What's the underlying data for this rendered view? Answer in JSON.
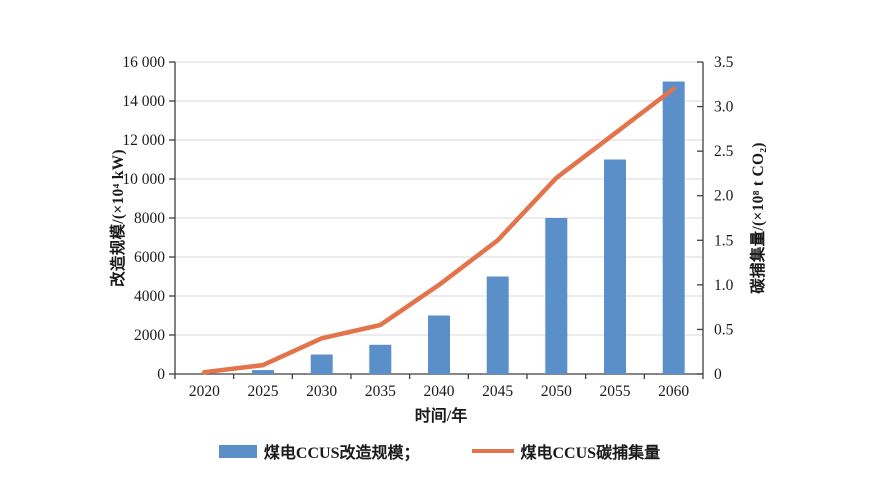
{
  "figure": {
    "background": "#ffffff"
  },
  "chart_data": {
    "type": "bar",
    "subtype": "bar+line dual axis",
    "categories": [
      "2020",
      "2025",
      "2030",
      "2035",
      "2040",
      "2045",
      "2050",
      "2055",
      "2060"
    ],
    "series": [
      {
        "name": "煤电CCUS改造规模",
        "type": "bar",
        "axis": "left",
        "color": "#5B8FC9",
        "values": [
          0,
          200,
          1000,
          1500,
          3000,
          5000,
          8000,
          11000,
          15000
        ]
      },
      {
        "name": "煤电CCUS碳捕集量",
        "type": "line",
        "axis": "right",
        "color": "#E2734B",
        "values": [
          0.02,
          0.1,
          0.4,
          0.55,
          1.0,
          1.5,
          2.2,
          2.7,
          3.2
        ]
      }
    ],
    "left_axis": {
      "label": "改造规模/(×10⁴ kW)",
      "min": 0,
      "max": 16000,
      "tick_step": 2000,
      "tick_labels": [
        "0",
        "2000",
        "4000",
        "6000",
        "8000",
        "10 000",
        "12 000",
        "14 000",
        "16 000"
      ]
    },
    "right_axis": {
      "label": "碳捕集量/(×10⁸ t CO₂)",
      "min": 0,
      "max": 3.5,
      "tick_step": 0.5,
      "tick_labels": [
        "0",
        "0.5",
        "1.0",
        "1.5",
        "2.0",
        "2.5",
        "3.0",
        "3.5"
      ]
    },
    "x_axis": {
      "label": "时间/年"
    },
    "grid": true,
    "legend_position": "bottom",
    "legend": [
      {
        "label": "煤电CCUS改造规模；",
        "swatch": "rect",
        "color": "#5B8FC9"
      },
      {
        "label": "煤电CCUS碳捕集量",
        "swatch": "line",
        "color": "#E2734B"
      }
    ]
  },
  "colors": {
    "bar": "#5B8FC9",
    "line": "#E2734B",
    "grid": "#d9d9d9",
    "axis": "#3f3f3f",
    "text": "#1a1a1a"
  }
}
